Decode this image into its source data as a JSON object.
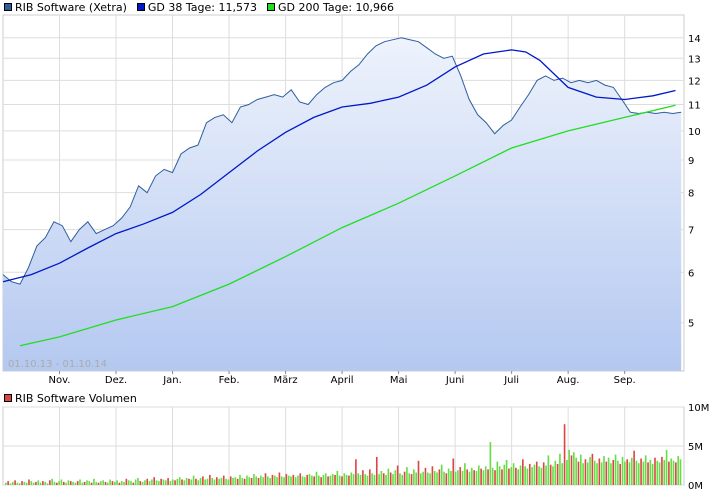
{
  "colors": {
    "price": "#2e5d9e",
    "gd38": "#0018c8",
    "gd200": "#22dd22",
    "vol_up": "#66dd44",
    "vol_down": "#dd4444",
    "area_top": "#eef3fc",
    "area_bottom": "#b4c8f0",
    "grid": "#dddddd"
  },
  "legend": {
    "price_label": "RIB Software (Xetra)",
    "gd38_label": "GD 38 Tage: 11,573",
    "gd200_label": "GD 200 Tage: 10,966"
  },
  "volume_legend": {
    "label": "RIB Software Volumen"
  },
  "chart_data": [
    {
      "type": "line",
      "scale": "log",
      "range_text": "01.10.13 - 01.10.14",
      "ylim": [
        4.2,
        15.2
      ],
      "y_ticks": [
        5,
        6,
        7,
        8,
        9,
        10,
        11,
        12,
        13,
        14
      ],
      "x_ticks": [
        "Nov.",
        "Dez.",
        "Jan.",
        "Feb.",
        "März",
        "April",
        "Mai",
        "Juni",
        "Juli",
        "Aug.",
        "Sep."
      ],
      "x_tick_positions": [
        1,
        2,
        3,
        4,
        5,
        6,
        7,
        8,
        9,
        10,
        11
      ],
      "xlim": [
        0,
        12.05
      ],
      "grid": true,
      "legend_position": "top-left",
      "series": [
        {
          "name": "RIB Software (Xetra)",
          "x": [
            0,
            0.15,
            0.3,
            0.45,
            0.6,
            0.75,
            0.9,
            1.05,
            1.2,
            1.35,
            1.5,
            1.65,
            1.8,
            1.95,
            2.1,
            2.25,
            2.4,
            2.55,
            2.7,
            2.85,
            3.0,
            3.15,
            3.3,
            3.45,
            3.6,
            3.75,
            3.9,
            4.05,
            4.2,
            4.35,
            4.5,
            4.65,
            4.8,
            4.95,
            5.1,
            5.25,
            5.4,
            5.55,
            5.7,
            5.85,
            6.0,
            6.15,
            6.3,
            6.45,
            6.6,
            6.75,
            6.9,
            7.05,
            7.2,
            7.35,
            7.5,
            7.65,
            7.8,
            7.95,
            8.1,
            8.25,
            8.4,
            8.55,
            8.7,
            8.85,
            9.0,
            9.15,
            9.3,
            9.45,
            9.6,
            9.75,
            9.9,
            10.05,
            10.2,
            10.35,
            10.5,
            10.65,
            10.8,
            10.95,
            11.1,
            11.25,
            11.4,
            11.55,
            11.7,
            11.85,
            12.0
          ],
          "values": [
            5.95,
            5.8,
            5.75,
            6.1,
            6.6,
            6.8,
            7.2,
            7.1,
            6.7,
            7.0,
            7.2,
            6.9,
            7.0,
            7.1,
            7.3,
            7.6,
            8.2,
            8.0,
            8.5,
            8.7,
            8.6,
            9.2,
            9.4,
            9.5,
            10.3,
            10.5,
            10.6,
            10.3,
            10.9,
            11.0,
            11.2,
            11.3,
            11.4,
            11.3,
            11.6,
            11.1,
            11.0,
            11.4,
            11.7,
            11.9,
            12.0,
            12.4,
            12.7,
            13.2,
            13.6,
            13.8,
            13.9,
            14.0,
            13.9,
            13.8,
            13.5,
            13.2,
            13.0,
            13.1,
            12.2,
            11.2,
            10.6,
            10.3,
            9.9,
            10.2,
            10.4,
            10.9,
            11.4,
            12.0,
            12.2,
            12.0,
            12.1,
            11.9,
            12.0,
            11.9,
            12.0,
            11.8,
            11.7,
            11.2,
            10.7,
            10.65,
            10.7,
            10.65,
            10.7,
            10.65,
            10.7
          ]
        },
        {
          "name": "GD 38 Tage: 11,573",
          "x": [
            0,
            0.5,
            1.0,
            1.5,
            2.0,
            2.5,
            3.0,
            3.5,
            4.0,
            4.5,
            5.0,
            5.5,
            6.0,
            6.5,
            7.0,
            7.5,
            8.0,
            8.5,
            9.0,
            9.25,
            9.5,
            10.0,
            10.5,
            11.0,
            11.5,
            11.9
          ],
          "values": [
            5.8,
            5.95,
            6.2,
            6.55,
            6.9,
            7.15,
            7.45,
            7.95,
            8.6,
            9.3,
            9.95,
            10.5,
            10.9,
            11.05,
            11.3,
            11.8,
            12.6,
            13.2,
            13.4,
            13.3,
            12.9,
            11.7,
            11.3,
            11.2,
            11.35,
            11.57
          ]
        },
        {
          "name": "GD 200 Tage: 10,966",
          "x": [
            0.3,
            1.0,
            2.0,
            3.0,
            4.0,
            5.0,
            6.0,
            7.0,
            8.0,
            9.0,
            10.0,
            11.0,
            11.9
          ],
          "values": [
            4.6,
            4.75,
            5.05,
            5.3,
            5.75,
            6.35,
            7.05,
            7.7,
            8.5,
            9.4,
            10.0,
            10.5,
            10.97
          ]
        }
      ]
    },
    {
      "type": "bar",
      "title": "RIB Software Volumen",
      "ylim": [
        0,
        10
      ],
      "y_ticks": [
        "0M",
        "5M",
        "10M"
      ],
      "y_tick_values": [
        0,
        5,
        10
      ],
      "grid": true,
      "values": [
        0.3,
        0.5,
        0.2,
        0.4,
        0.6,
        0.3,
        0.2,
        0.5,
        0.4,
        0.3,
        0.7,
        0.5,
        0.3,
        0.4,
        0.6,
        0.3,
        0.5,
        0.4,
        0.2,
        0.6,
        0.8,
        0.4,
        0.3,
        0.5,
        0.7,
        0.4,
        0.3,
        0.6,
        0.5,
        0.4,
        0.3,
        0.5,
        0.7,
        0.3,
        0.4,
        0.6,
        0.5,
        0.3,
        0.8,
        0.4,
        0.3,
        0.5,
        0.6,
        0.4,
        0.3,
        0.7,
        0.5,
        0.4,
        0.6,
        0.3,
        0.5,
        0.4,
        0.8,
        0.6,
        0.5,
        0.3,
        0.7,
        0.9,
        0.5,
        0.4,
        0.6,
        0.8,
        0.5,
        0.7,
        1.0,
        0.6,
        0.5,
        0.8,
        0.7,
        0.6,
        0.9,
        0.5,
        0.7,
        0.6,
        0.8,
        1.0,
        0.7,
        0.6,
        0.9,
        0.8,
        0.7,
        1.2,
        0.8,
        0.6,
        0.9,
        1.1,
        0.7,
        0.8,
        1.3,
        0.9,
        0.7,
        1.0,
        0.8,
        0.9,
        1.2,
        0.8,
        0.7,
        1.1,
        0.9,
        1.0,
        0.8,
        1.3,
        0.9,
        0.8,
        1.2,
        1.0,
        0.9,
        1.4,
        1.1,
        0.9,
        1.2,
        1.0,
        1.5,
        1.1,
        0.9,
        1.3,
        1.2,
        1.0,
        1.6,
        1.1,
        1.0,
        1.4,
        1.2,
        1.1,
        1.3,
        1.0,
        1.2,
        1.5,
        1.1,
        1.0,
        1.3,
        1.4,
        1.2,
        1.1,
        1.7,
        1.2,
        1.0,
        1.3,
        1.5,
        1.1,
        1.2,
        1.4,
        1.3,
        1.8,
        1.2,
        1.1,
        1.5,
        1.3,
        1.2,
        1.6,
        1.4,
        3.3,
        1.5,
        1.3,
        1.9,
        1.4,
        1.2,
        2.0,
        1.5,
        1.3,
        3.6,
        1.4,
        1.8,
        1.5,
        1.3,
        2.1,
        1.6,
        1.4,
        1.9,
        2.5,
        1.5,
        1.3,
        1.7,
        2.3,
        1.5,
        1.4,
        2.0,
        1.6,
        3.1,
        1.5,
        1.7,
        2.2,
        1.6,
        1.5,
        2.4,
        1.8,
        1.6,
        2.0,
        2.6,
        1.7,
        1.5,
        2.1,
        1.8,
        3.4,
        1.7,
        1.9,
        2.3,
        1.8,
        2.8,
        2.0,
        1.7,
        2.2,
        1.9,
        1.8,
        2.5,
        2.1,
        1.9,
        2.4,
        2.0,
        5.5,
        2.2,
        1.9,
        3.0,
        2.4,
        2.0,
        2.6,
        3.2,
        2.1,
        2.3,
        2.8,
        2.2,
        2.0,
        2.5,
        3.3,
        2.4,
        2.1,
        2.7,
        2.3,
        2.6,
        3.0,
        2.4,
        2.2,
        2.9,
        2.5,
        3.8,
        2.6,
        2.4,
        3.1,
        2.7,
        4.0,
        2.8,
        7.8,
        3.2,
        4.5,
        3.8,
        4.2,
        3.5,
        3.0,
        3.9,
        2.8,
        3.3,
        2.9,
        3.6,
        4.0,
        3.1,
        2.8,
        3.4,
        2.9,
        3.7,
        3.0,
        3.5,
        2.8,
        3.2,
        3.9,
        3.1,
        2.7,
        3.6,
        3.0,
        3.3,
        2.9,
        3.5,
        4.4,
        3.1,
        2.8,
        3.4,
        3.0,
        3.8,
        2.9,
        3.2,
        2.7,
        3.5,
        3.1,
        2.9,
        3.6,
        3.2,
        4.5,
        3.0,
        3.4,
        3.1,
        2.9,
        3.7,
        3.3
      ]
    }
  ]
}
